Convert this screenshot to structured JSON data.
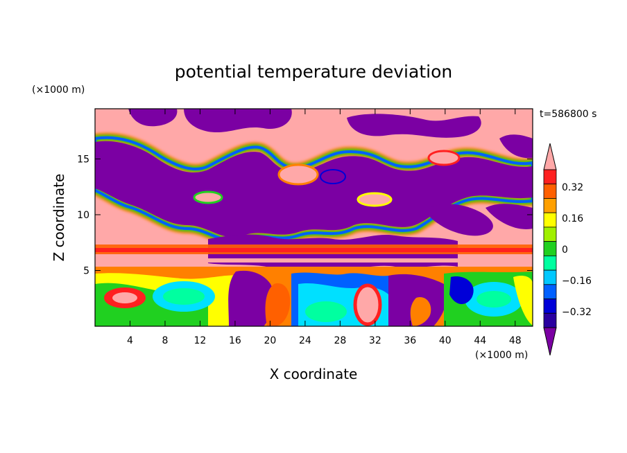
{
  "chart_data": {
    "type": "heatmap",
    "title": "potential temperature deviation",
    "xlabel": "X coordinate",
    "ylabel": "Z coordinate",
    "x_unit": "(×1000 m)",
    "y_unit": "(×1000 m)",
    "time_label": "t=586800 s",
    "xlim": [
      0,
      50
    ],
    "ylim": [
      0,
      19.5
    ],
    "x_ticks": [
      4,
      8,
      12,
      16,
      20,
      24,
      28,
      32,
      36,
      40,
      44,
      48
    ],
    "y_ticks": [
      5,
      10,
      15
    ],
    "colorbar": {
      "ticks": [
        "0.32",
        "0.16",
        "0",
        "−0.16",
        "−0.32"
      ],
      "levels": [
        -0.48,
        -0.4,
        -0.32,
        -0.24,
        -0.16,
        -0.08,
        0,
        0.08,
        0.16,
        0.24,
        0.32,
        0.4,
        0.48
      ],
      "colors": [
        "#7b00a3",
        "#2a00a0",
        "#0000d8",
        "#0060ff",
        "#00c8ff",
        "#00ffa0",
        "#20d020",
        "#a0f000",
        "#ffff00",
        "#ffa000",
        "#ff6000",
        "#ff2020",
        "#ffa8a8"
      ],
      "extend": "both"
    },
    "colors": {
      "purple": "#7b00a3",
      "pink": "#ffa8a8",
      "red": "#ff2020",
      "orange": "#ff8000",
      "yellow": "#ffff00",
      "green": "#20d020",
      "cyan": "#00e0ff",
      "blue": "#0000d8"
    }
  }
}
